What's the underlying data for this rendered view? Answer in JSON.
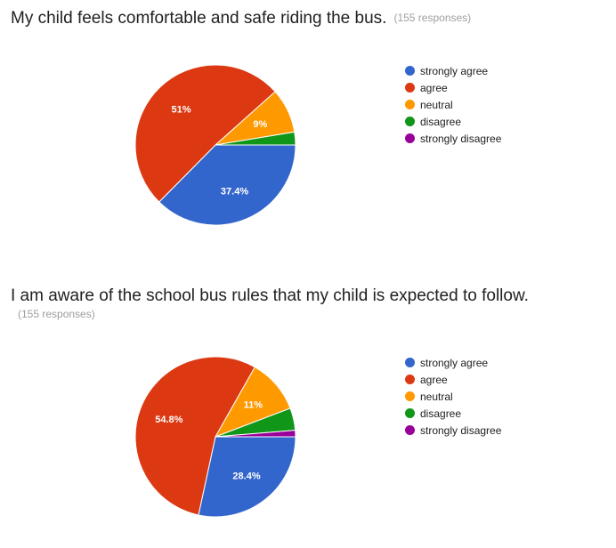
{
  "charts": [
    {
      "title": "My child feels comfortable and safe riding the bus.",
      "responses": "(155 responses)"
    },
    {
      "title": "I am aware of the school bus rules that my child is expected to follow.",
      "responses": "(155 responses)"
    }
  ],
  "chart_data": [
    {
      "type": "pie",
      "title": "My child feels comfortable and safe riding the bus.",
      "categories": [
        "strongly agree",
        "agree",
        "neutral",
        "disagree",
        "strongly disagree"
      ],
      "values": [
        37.4,
        51,
        9,
        2.6,
        0
      ],
      "data_labels": [
        "37.4%",
        "51%",
        "9%",
        "",
        ""
      ],
      "colors": [
        "#3366cc",
        "#dc3912",
        "#ff9900",
        "#109618",
        "#990099"
      ],
      "legend": "right"
    },
    {
      "type": "pie",
      "title": "I am aware of the school bus rules that my child is expected to follow.",
      "categories": [
        "strongly agree",
        "agree",
        "neutral",
        "disagree",
        "strongly disagree"
      ],
      "values": [
        28.4,
        54.8,
        11,
        4.5,
        1.3
      ],
      "data_labels": [
        "28.4%",
        "54.8%",
        "11%",
        "",
        ""
      ],
      "colors": [
        "#3366cc",
        "#dc3912",
        "#ff9900",
        "#109618",
        "#990099"
      ],
      "legend": "right"
    }
  ]
}
